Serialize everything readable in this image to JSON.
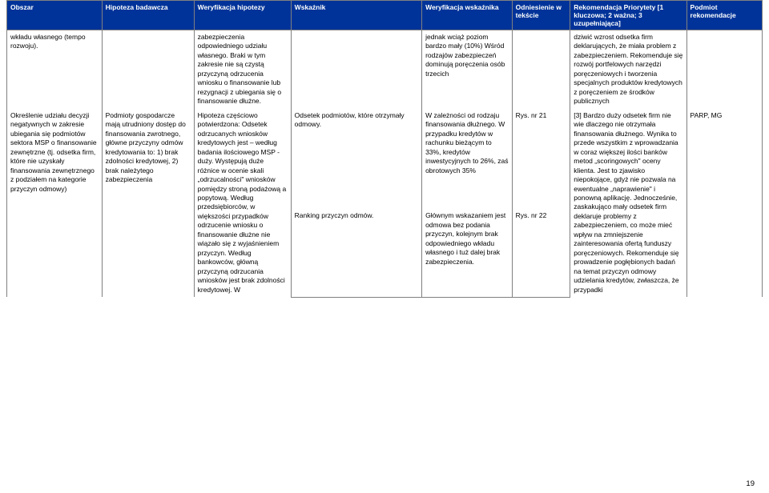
{
  "colors": {
    "header_bg": "#003399",
    "header_fg": "#ffffff",
    "border": "#808080",
    "page_bg": "#ffffff"
  },
  "headers": {
    "h1": "Obszar",
    "h2": "Hipoteza badawcza",
    "h3": "Weryfikacja hipotezy",
    "h4": "Wskaźnik",
    "h5": "Weryfikacja wskaźnika",
    "h6": "Odniesienie w tekście",
    "h7": "Rekomendacja Priorytety [1 kluczowa; 2 ważna; 3 uzupełniająca]",
    "h8": "Podmiot rekomendacje"
  },
  "row1": {
    "c1": "wkładu własnego (tempo rozwoju).",
    "c2": "",
    "c3": "zabezpieczenia odpowiedniego udziału własnego. Braki w tym zakresie nie są czystą przyczyną odrzucenia wniosku o finansowanie lub rezygnacji z ubiegania się o finansowanie dłużne.",
    "c4": "",
    "c5": "jednak wciąż poziom bardzo mały (10%) Wśród rodzajów zabezpieczeń dominują poręczenia osób trzecich",
    "c6": "",
    "c7": "dziwić wzrost odsetka firm deklarujących, że miała problem z zabezpieczeniem. Rekomenduje się rozwój portfelowych narzędzi poręczeniowych i tworzenia specjalnych produktów kredytowych z poręczeniem ze środków publicznych",
    "c8": ""
  },
  "row2": {
    "c1": "Określenie udziału decyzji negatywnych w zakresie ubiegania się podmiotów sektora MSP o finansowanie zewnętrzne (tj. odsetka firm, które nie uzyskały finansowania zewnętrznego z podziałem na kategorie przyczyn odmowy)",
    "c2": "Podmioty gospodarcze mają utrudniony dostęp do finansowania zwrotnego, główne przyczyny odmów kredytowania to: 1) brak zdolności kredytowej, 2) brak należytego zabezpieczenia",
    "c3": "Hipoteza częściowo potwierdzona: Odsetek odrzucanych wniosków kredytowych jest – według badania ilościowego MSP - duży. Występują duże różnice w ocenie skali „odrzucalności\" wniosków pomiędzy stroną podażową a popytową. Według przedsiębiorców, w większości przypadków odrzucenie wniosku o finansowanie dłużne nie wiązało się z wyjaśnieniem przyczyn. Według bankowców, główną przyczyną odrzucania wniosków jest brak zdolności kredytowej. W",
    "c4a": "Odsetek podmiotów, które otrzymały odmowy.",
    "c4b": "Ranking przyczyn odmów.",
    "c5a": "W zależności od rodzaju finansowania dłużnego. W przypadku kredytów w rachunku bieżącym to 33%, kredytów inwestycyjnych to 26%, zaś obrotowych 35%",
    "c5b": "Głównym wskazaniem jest odmowa bez podania przyczyn, kolejnym brak odpowiedniego wkładu własnego i tuż dalej brak zabezpieczenia.",
    "c6a": "Rys. nr 21",
    "c6b": "Rys. nr 22",
    "c7": "[3] Bardzo duży odsetek firm nie wie dlaczego nie otrzymała finansowania dłużnego. Wynika to przede wszystkim z wprowadzania w coraz większej ilości banków metod „scoringowych\" oceny klienta. Jest to zjawisko niepokojące, gdyż nie pozwala na ewentualne „naprawienie\" i ponowną aplikację. Jednocześnie, zaskakująco mały odsetek firm deklaruje problemy z zabezpieczeniem, co może mieć wpływ na zmniejszenie zainteresowania ofertą funduszy poręczeniowych. Rekomenduje się prowadzenie pogłębionych badań na temat przyczyn odmowy udzielania kredytów, zwłaszcza, że przypadki",
    "c8": "PARP, MG"
  },
  "page_number": "19"
}
